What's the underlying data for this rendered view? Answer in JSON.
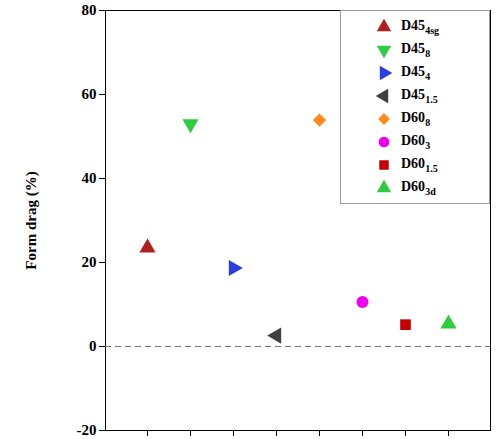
{
  "chart_data": {
    "type": "scatter",
    "y_label": "Form drag (%)",
    "categories": [
      null,
      null,
      null,
      null,
      null,
      null,
      null,
      null
    ],
    "ylim": [
      -20,
      80
    ],
    "yticks": [
      -20,
      0,
      20,
      40,
      60,
      80
    ],
    "grid": false,
    "tick_labels": "y",
    "legend": "upper right",
    "reference_line": {
      "value": 0,
      "line_style": "dashed"
    },
    "series": [
      {
        "name": "D45",
        "subscript": "4sg",
        "color": "#b01e1e",
        "marker": "triangle-up",
        "values": [
          23.5,
          null,
          null,
          null,
          null,
          null,
          null,
          null
        ]
      },
      {
        "name": "D45",
        "subscript": "8",
        "color": "#2ecc40",
        "marker": "triangle-down",
        "values": [
          null,
          53.0,
          null,
          null,
          null,
          null,
          null,
          null
        ]
      },
      {
        "name": "D45",
        "subscript": "4",
        "color": "#2b3fe0",
        "marker": "triangle-right",
        "values": [
          null,
          null,
          18.7,
          null,
          null,
          null,
          null,
          null
        ]
      },
      {
        "name": "D45",
        "subscript": "1.5",
        "color": "#404040",
        "marker": "triangle-left",
        "values": [
          null,
          null,
          null,
          2.6,
          null,
          null,
          null,
          null
        ]
      },
      {
        "name": "D60",
        "subscript": "8",
        "color": "#ff8c1a",
        "marker": "diamond",
        "values": [
          null,
          null,
          null,
          null,
          53.9,
          null,
          null,
          null
        ]
      },
      {
        "name": "D60",
        "subscript": "3",
        "color": "#ee00ee",
        "marker": "circle",
        "values": [
          null,
          null,
          null,
          null,
          null,
          10.6,
          null,
          null
        ]
      },
      {
        "name": "D60",
        "subscript": "1.5",
        "color": "#c40000",
        "marker": "square",
        "values": [
          null,
          null,
          null,
          null,
          null,
          null,
          5.2,
          null
        ]
      },
      {
        "name": "D60",
        "subscript": "3d",
        "color": "#2ecc40",
        "marker": "triangle-up",
        "values": [
          null,
          null,
          null,
          null,
          null,
          null,
          null,
          5.4
        ]
      }
    ]
  }
}
